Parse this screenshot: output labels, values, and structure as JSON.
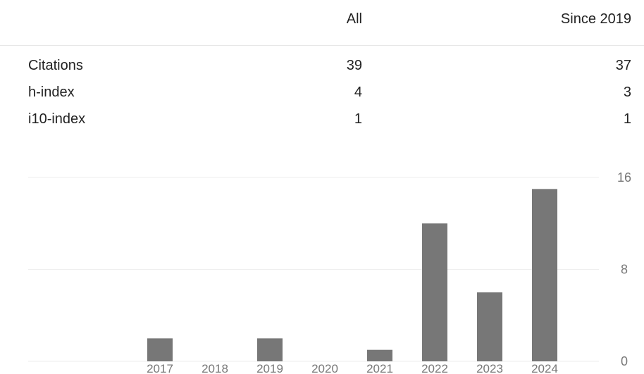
{
  "table": {
    "headers": {
      "all": "All",
      "since": "Since 2019"
    },
    "rows": [
      {
        "label": "Citations",
        "all": "39",
        "since": "37"
      },
      {
        "label": "h-index",
        "all": "4",
        "since": "3"
      },
      {
        "label": "i10-index",
        "all": "1",
        "since": "1"
      }
    ]
  },
  "chart_data": {
    "type": "bar",
    "categories": [
      "2017",
      "2018",
      "2019",
      "2020",
      "2021",
      "2022",
      "2023",
      "2024"
    ],
    "values": [
      2,
      0,
      2,
      0,
      1,
      12,
      6,
      15
    ],
    "yticks": [
      "0",
      "8",
      "16"
    ],
    "ylim": [
      0,
      16
    ],
    "bar_color": "#777777",
    "grid_color": "#eeeeee",
    "grid": true
  }
}
